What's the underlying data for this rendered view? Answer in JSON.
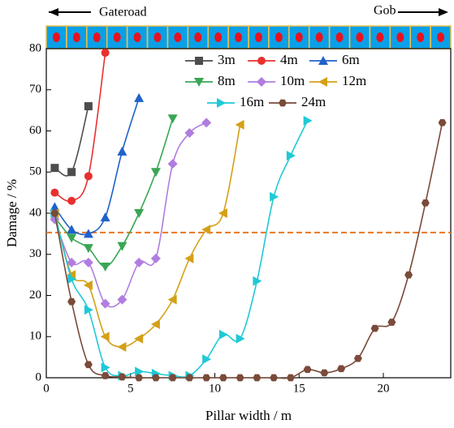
{
  "chart_data": {
    "type": "line",
    "xlabel": "Pillar width / m",
    "ylabel": "Damage / %",
    "annotations": {
      "left": "Gateroad",
      "right": "Gob"
    },
    "threshold": {
      "value": 35.3,
      "color": "#e87722"
    },
    "xlim": [
      0,
      24
    ],
    "ylim": [
      0,
      80
    ],
    "xticks": [
      0,
      5,
      10,
      15,
      20
    ],
    "yticks": [
      0,
      10,
      20,
      30,
      40,
      50,
      60,
      70,
      80
    ],
    "series": [
      {
        "name": "3m",
        "color": "#4d4d4d",
        "marker": "square",
        "x": [
          0.5,
          1.5,
          2.5
        ],
        "values": [
          51,
          50,
          66
        ]
      },
      {
        "name": "4m",
        "color": "#e8312f",
        "marker": "circle",
        "x": [
          0.5,
          1.5,
          2.5,
          3.5
        ],
        "values": [
          45,
          43,
          49,
          79
        ]
      },
      {
        "name": "6m",
        "color": "#1f62c9",
        "marker": "triangle-up",
        "x": [
          0.5,
          1.5,
          2.5,
          3.5,
          4.5,
          5.5
        ],
        "values": [
          41.5,
          36,
          35,
          39,
          55,
          68
        ]
      },
      {
        "name": "8m",
        "color": "#3aa655",
        "marker": "triangle-down",
        "x": [
          0.5,
          1.5,
          2.5,
          3.5,
          4.5,
          5.5,
          6.5,
          7.5
        ],
        "values": [
          39,
          34,
          31.5,
          27,
          32,
          40,
          50,
          63
        ]
      },
      {
        "name": "10m",
        "color": "#b07de0",
        "marker": "diamond",
        "x": [
          0.5,
          1.5,
          2.5,
          3.5,
          4.5,
          5.5,
          6.5,
          7.5,
          8.5,
          9.5
        ],
        "values": [
          38.5,
          28,
          28,
          18,
          19,
          28,
          29,
          52,
          59.5,
          62
        ]
      },
      {
        "name": "12m",
        "color": "#d4a017",
        "marker": "triangle-left",
        "x": [
          0.5,
          1.5,
          2.5,
          3.5,
          4.5,
          5.5,
          6.5,
          7.5,
          8.5,
          9.5,
          10.5,
          11.5
        ],
        "values": [
          40,
          25,
          22.5,
          10,
          7.5,
          9.5,
          13,
          19,
          29,
          36,
          40,
          61.5
        ]
      },
      {
        "name": "16m",
        "color": "#1fc9d6",
        "marker": "triangle-right",
        "x": [
          0.5,
          1.5,
          2.5,
          3.5,
          4.5,
          5.5,
          6.5,
          7.5,
          8.5,
          9.5,
          10.5,
          11.5,
          12.5,
          13.5,
          14.5,
          15.5
        ],
        "values": [
          40,
          24,
          16.5,
          2.5,
          0.5,
          1.5,
          1,
          0.5,
          0.5,
          4.5,
          10.5,
          9.5,
          23.5,
          44,
          54,
          62.5
        ]
      },
      {
        "name": "24m",
        "color": "#7a4a3a",
        "marker": "hexagon",
        "x": [
          0.5,
          1.5,
          2.5,
          3.5,
          4.5,
          5.5,
          6.5,
          7.5,
          8.5,
          9.5,
          10.5,
          11.5,
          12.5,
          13.5,
          14.5,
          15.5,
          16.5,
          17.5,
          18.5,
          19.5,
          20.5,
          21.5,
          22.5,
          23.5
        ],
        "values": [
          40,
          18.5,
          3.2,
          0.5,
          0.2,
          0,
          0,
          0,
          0,
          0,
          0,
          0,
          0,
          0,
          0,
          2,
          1.2,
          2.2,
          4.7,
          12,
          13.5,
          25,
          42.5,
          62
        ]
      }
    ]
  }
}
